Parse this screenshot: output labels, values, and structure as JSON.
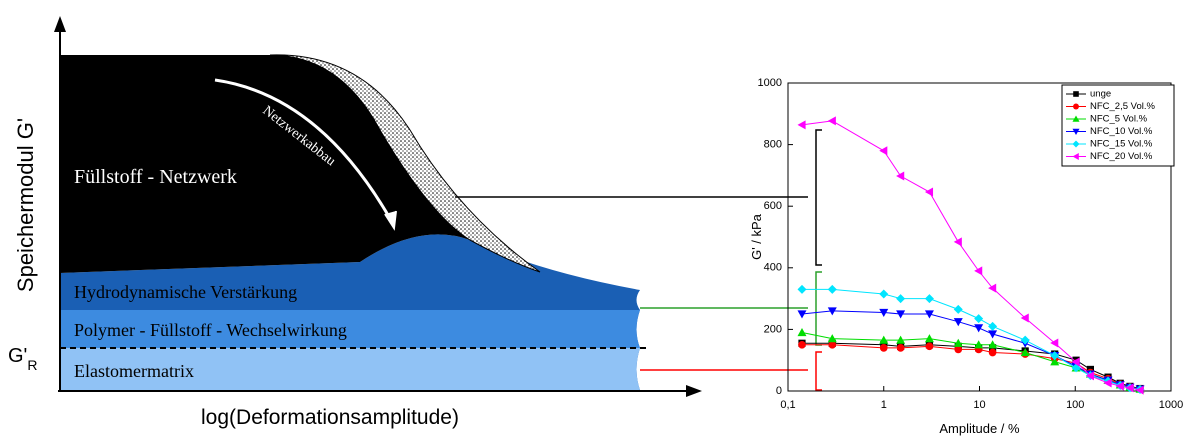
{
  "schematic": {
    "y_axis_label": "Speichermodul G'",
    "x_axis_label": "log(Deformationsamplitude)",
    "filler_network": "Füllstoff - Netzwerk",
    "network_breakdown": "Netzwerkabbau",
    "hydrodynamic": "Hydrodynamische Verstärkung",
    "polymer_filler": "Polymer - Füllstoff - Wechselwirkung",
    "elastomer": "Elastomermatrix",
    "g_r_label": "G'",
    "g_r_subscript": "R"
  },
  "chart_data": {
    "type": "line",
    "x_label": "Amplitude / %",
    "y_label": "G' / kPa",
    "x_log": true,
    "xlim": [
      0.1,
      1000
    ],
    "xticks": [
      {
        "value": 0.1,
        "label": "0,1"
      },
      1,
      10,
      100,
      1000
    ],
    "ylim": [
      0,
      1000
    ],
    "yticks": [
      0,
      200,
      400,
      600,
      800,
      1000
    ],
    "legend": "upper right",
    "x": [
      0.14,
      0.29,
      1.0,
      1.5,
      3.0,
      6.0,
      9.8,
      13.7,
      30,
      61,
      102,
      144,
      220,
      295,
      373,
      475
    ],
    "series": [
      {
        "name": "unge",
        "color": "#000000",
        "marker": "square",
        "values": [
          155,
          155,
          150,
          145,
          150,
          145,
          140,
          140,
          130,
          120,
          100,
          70,
          45,
          25,
          15,
          8
        ]
      },
      {
        "name": "NFC_2,5 Vol.%",
        "color": "#ff0000",
        "marker": "circle",
        "values": [
          150,
          150,
          140,
          140,
          145,
          135,
          135,
          125,
          120,
          105,
          90,
          60,
          40,
          22,
          13,
          7
        ]
      },
      {
        "name": "NFC_5 Vol.%",
        "color": "#00dd00",
        "marker": "triangle-up",
        "values": [
          190,
          170,
          165,
          165,
          170,
          155,
          150,
          150,
          125,
          95,
          75,
          55,
          35,
          20,
          12,
          6
        ]
      },
      {
        "name": "NFC_10 Vol.%",
        "color": "#0000ff",
        "marker": "triangle-down",
        "values": [
          250,
          260,
          255,
          250,
          250,
          225,
          205,
          185,
          155,
          115,
          80,
          55,
          35,
          20,
          12,
          6
        ]
      },
      {
        "name": "NFC_15 Vol.%",
        "color": "#00e5ff",
        "marker": "diamond",
        "values": [
          330,
          330,
          315,
          300,
          300,
          265,
          235,
          210,
          165,
          115,
          75,
          50,
          32,
          18,
          10,
          5
        ]
      },
      {
        "name": "NFC_20 Vol.%",
        "color": "#ff00ff",
        "marker": "triangle-left",
        "values": [
          864,
          877,
          780,
          698,
          646,
          484,
          390,
          334,
          237,
          156,
          94,
          49,
          26,
          16,
          10,
          3
        ]
      }
    ]
  }
}
